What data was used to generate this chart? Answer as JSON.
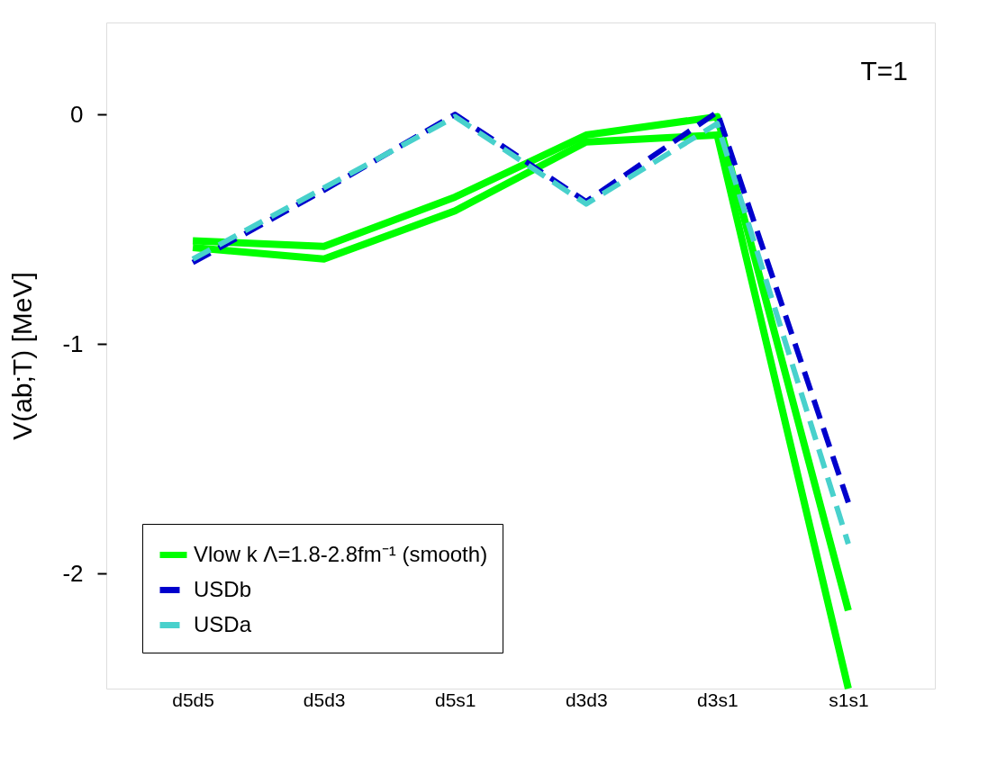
{
  "chart_data": {
    "type": "line",
    "ylabel": "V(ab;T) [MeV]",
    "categories": [
      "d5d5",
      "d5d3",
      "d5s1",
      "d3d3",
      "d3s1",
      "s1s1"
    ],
    "ylim": [
      -2.5,
      0.4
    ],
    "yticks": [
      -2,
      -1,
      0
    ],
    "grid": false,
    "legend": "bottom left",
    "annotations": [
      "T=1"
    ],
    "series": [
      {
        "name": "Vlow k Λ=1.8-2.8fm⁻¹ (smooth)",
        "color": "#00ff00",
        "line_style": "solid",
        "values": [
          -0.55,
          -0.575,
          -0.36,
          -0.09,
          -0.01,
          -2.16
        ]
      },
      {
        "color": "#00ff00",
        "line_style": "solid",
        "values": [
          -0.58,
          -0.63,
          -0.42,
          -0.12,
          -0.09,
          -2.5
        ]
      },
      {
        "name": "USDb",
        "color": "#0000cc",
        "line_style": "dashed",
        "values": [
          -0.645,
          -0.33,
          0.0,
          -0.38,
          0.01,
          -1.69
        ]
      },
      {
        "name": "USDa",
        "color": "#48d1cc",
        "line_style": "dashed",
        "values": [
          -0.63,
          -0.32,
          -0.01,
          -0.39,
          -0.04,
          -1.87
        ]
      }
    ]
  }
}
